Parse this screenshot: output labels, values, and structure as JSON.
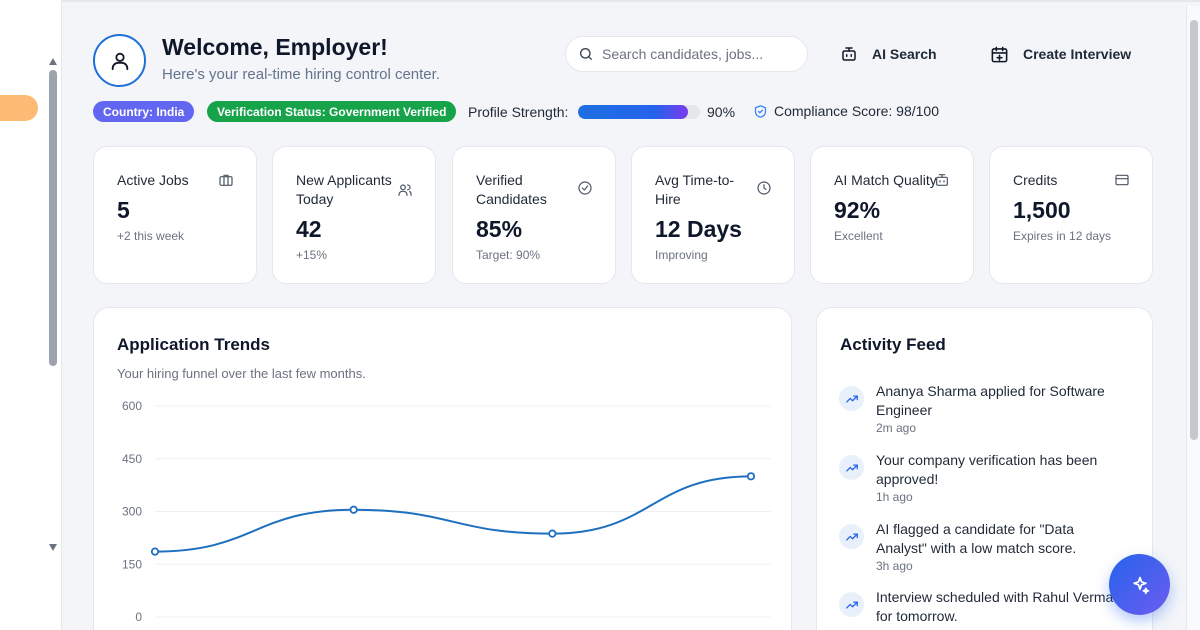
{
  "header": {
    "title": "Welcome, Employer!",
    "subtitle": "Here's your real-time hiring control center.",
    "search_placeholder": "Search candidates, jobs...",
    "ai_search_label": "AI Search",
    "create_interview_label": "Create Interview"
  },
  "status": {
    "country_badge": "Country: India",
    "verification_badge": "Verification Status: Government Verified",
    "profile_strength_label": "Profile Strength:",
    "profile_strength_value": 0.9,
    "profile_strength_text": "90%",
    "compliance_text": "Compliance Score: 98/100"
  },
  "stats": [
    {
      "label": "Active Jobs",
      "value": "5",
      "sub": "+2 this week",
      "icon": "briefcase-icon"
    },
    {
      "label": "New Applicants Today",
      "value": "42",
      "sub": "+15%",
      "icon": "users-icon"
    },
    {
      "label": "Verified Candidates",
      "value": "85%",
      "sub": "Target: 90%",
      "icon": "check-circle-icon"
    },
    {
      "label": "Avg Time-to-Hire",
      "value": "12 Days",
      "sub": "Improving",
      "icon": "clock-icon"
    },
    {
      "label": "AI Match Quality",
      "value": "92%",
      "sub": "Excellent",
      "icon": "bot-icon"
    },
    {
      "label": "Credits",
      "value": "1,500",
      "sub": "Expires in 12 days",
      "icon": "credit-card-icon"
    }
  ],
  "trends": {
    "title": "Application Trends",
    "subtitle": "Your hiring funnel over the last few months."
  },
  "chart_data": {
    "type": "line",
    "title": "Application Trends",
    "subtitle": "Your hiring funnel over the last few months.",
    "x": [
      1,
      2,
      3,
      4
    ],
    "values": [
      186,
      305,
      237,
      400
    ],
    "ylim": [
      0,
      600
    ],
    "yticks": [
      0,
      150,
      300,
      450,
      600
    ],
    "grid": true,
    "color": "#1f6fbf"
  },
  "feed": {
    "title": "Activity Feed",
    "items": [
      {
        "text": "Ananya Sharma applied for Software Engineer",
        "time": "2m ago"
      },
      {
        "text": "Your company verification has been approved!",
        "time": "1h ago"
      },
      {
        "text": "AI flagged a candidate for \"Data Analyst\" with a low match score.",
        "time": "3h ago"
      },
      {
        "text": "Interview scheduled with Rahul Verma for tomorrow.",
        "time": ""
      }
    ]
  },
  "colors": {
    "accent": "#1e6fd9",
    "country_badge": "#6366f1",
    "verified_badge": "#16a34a",
    "chart_line": "#1f6fbf"
  }
}
